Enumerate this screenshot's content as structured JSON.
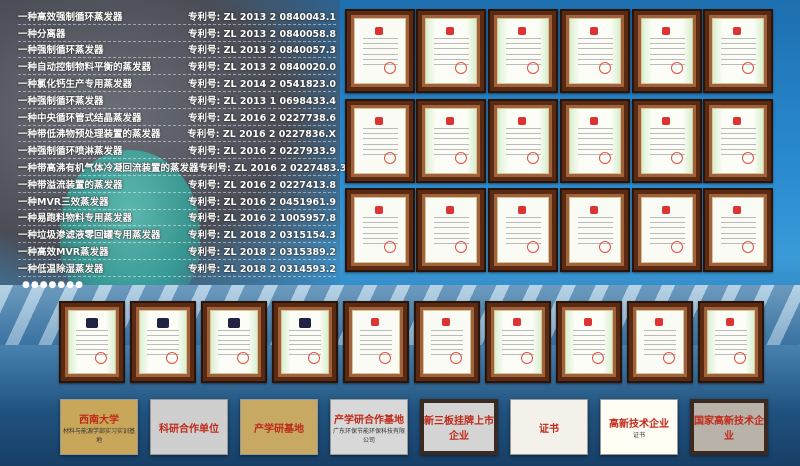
{
  "patent_prefix": "专利号:",
  "patents": [
    {
      "name": "一种高效强制循环蒸发器",
      "no": "ZL 2013 2 0840043.1"
    },
    {
      "name": "一种分离器",
      "no": "ZL 2013 2 0840058.8"
    },
    {
      "name": "一种强制循环蒸发器",
      "no": "ZL 2013 2 0840057.3"
    },
    {
      "name": "一种自动控制物料平衡的蒸发器",
      "no": "ZL 2013 2 0840020.0"
    },
    {
      "name": "一种氯化钙生产专用蒸发器",
      "no": "ZL 2014 2 0541823.0"
    },
    {
      "name": "一种强制循环蒸发器",
      "no": "ZL 2013 1 0698433.4"
    },
    {
      "name": "一种中央循环管式结晶蒸发器",
      "no": "ZL 2016 2 0227738.6"
    },
    {
      "name": "一种带低沸物预处理装置的蒸发器",
      "no": "ZL 2016 2 0227836.X"
    },
    {
      "name": "一种强制循环喷淋蒸发器",
      "no": "ZL 2016 2 0227933.9"
    },
    {
      "name": "一种带高沸有机气体冷凝回流装置的蒸发器",
      "no": "ZL 2016 2 0227483.3"
    },
    {
      "name": "一种带溢流装置的蒸发器",
      "no": "ZL 2016 2 0227413.8"
    },
    {
      "name": "一种MVR三效蒸发器",
      "no": "ZL 2016 2 0451961.9"
    },
    {
      "name": "一种易跑料物料专用蒸发器",
      "no": "ZL 2016 2 1005957.8"
    },
    {
      "name": "一种垃圾渗滤液零回罐专用蒸发器",
      "no": "ZL 2018 2 0315154.3"
    },
    {
      "name": "一种高效MVR蒸发器",
      "no": "ZL 2018 2 0315389.2"
    },
    {
      "name": "一种低温除湿蒸发器",
      "no": "ZL 2018 2 0314593.2"
    }
  ],
  "more": "●●●●●●●",
  "plaques": [
    {
      "title": "西南大学",
      "sub": "材料与能源学部实习实训基地",
      "bg": "#c9a75a"
    },
    {
      "title": "科研合作单位",
      "sub": "",
      "bg": "#cfcfcf"
    },
    {
      "title": "产学研基地",
      "sub": "",
      "bg": "#c7a963"
    },
    {
      "title": "产学研合作基地",
      "sub": "广东环保节能环保科技有限公司",
      "bg": "#d8d8d8"
    },
    {
      "title": "新三板挂牌上市企业",
      "sub": "",
      "bg": "#d4d4d4"
    },
    {
      "title": "证书",
      "sub": "",
      "bg": "#f4f1ea"
    },
    {
      "title": "高新技术企业",
      "sub": "证书",
      "bg": "#fffdf4"
    },
    {
      "title": "国家高新技术企业",
      "sub": "",
      "bg": "#b9b2a8"
    }
  ]
}
